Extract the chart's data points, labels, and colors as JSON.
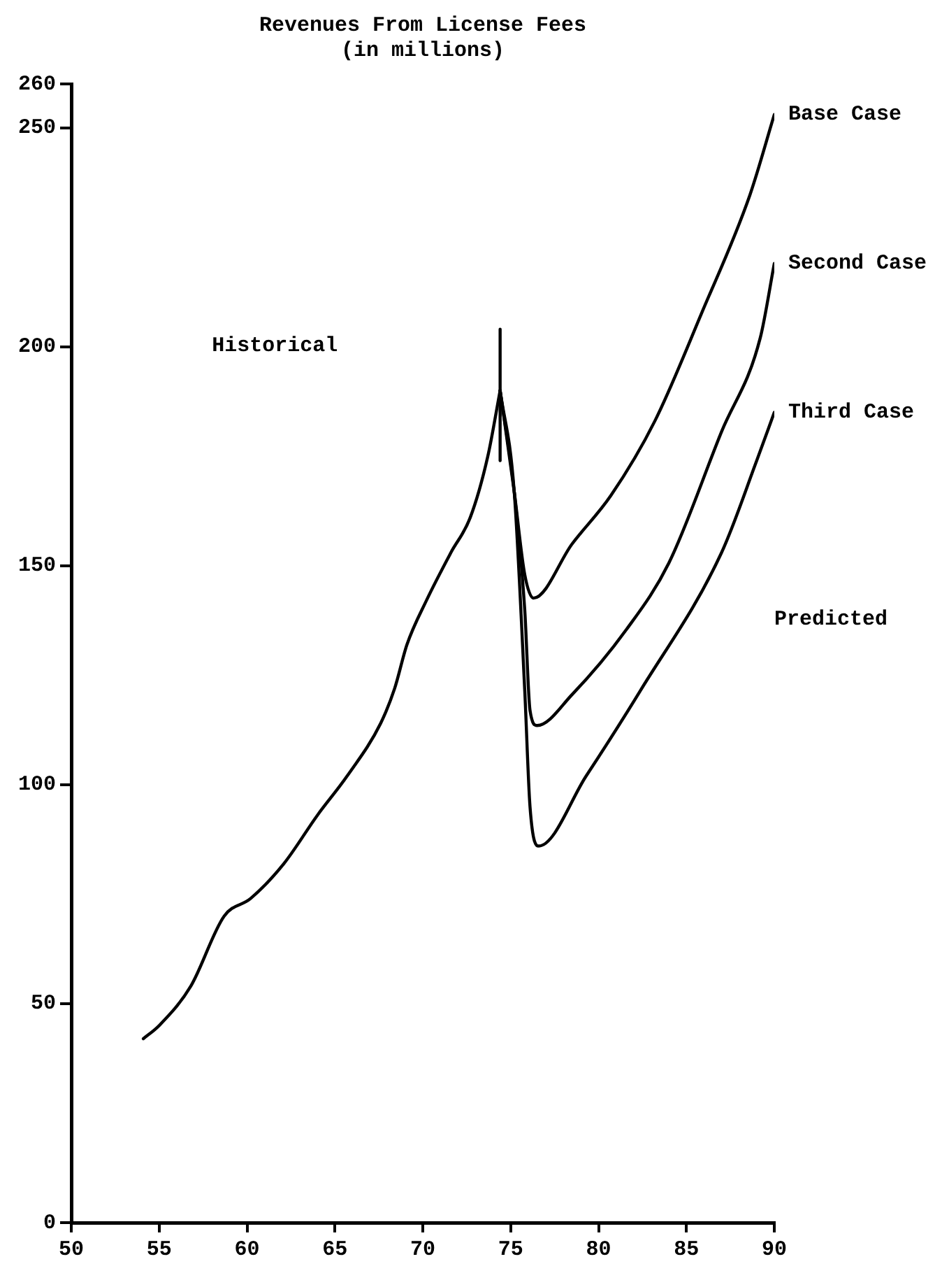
{
  "chart_data": {
    "type": "line",
    "title": "Revenues From License Fees",
    "subtitle": "(in millions)",
    "xlim": [
      50,
      90
    ],
    "xticks": [
      50,
      55,
      60,
      65,
      70,
      75,
      80,
      85,
      90
    ],
    "ylim": [
      0,
      260
    ],
    "yticks": [
      0,
      50,
      100,
      150,
      200,
      250,
      260
    ],
    "legend": false,
    "marker": "none",
    "line_style": "solid",
    "annotations": [
      "Historical",
      "Predicted"
    ],
    "series": [
      {
        "color": "#000000",
        "x": [
          54.1,
          55.0,
          56.8,
          58.7,
          60.2,
          62.1,
          64.0,
          65.7,
          67.6,
          68.4,
          69.1,
          70.2,
          71.6,
          72.7,
          73.7,
          74.4
        ],
        "values": [
          42,
          45,
          54,
          70,
          74,
          82,
          93,
          102,
          114,
          122,
          132,
          142,
          153,
          161,
          175,
          190
        ]
      },
      {
        "color": "#000000",
        "x": [
          74.4,
          74.4
        ],
        "values": [
          204,
          174
        ]
      },
      {
        "name": "Base Case",
        "color": "#000000",
        "x": [
          74.4,
          75.2,
          75.8,
          76.3,
          78.5,
          80.7,
          83.2,
          85.9,
          88.6,
          90
        ],
        "values": [
          190,
          167,
          148,
          142.6,
          155,
          166,
          183,
          208,
          234.5,
          253
        ]
      },
      {
        "name": "Second Case",
        "color": "#000000",
        "x": [
          74.4,
          75.2,
          75.8,
          76.1,
          76.5,
          78.5,
          81.6,
          84.0,
          87.0,
          89.2,
          90
        ],
        "values": [
          190,
          167,
          140,
          117,
          113.5,
          120.6,
          135.5,
          150.6,
          180.6,
          202,
          219
        ]
      },
      {
        "name": "Third Case",
        "color": "#000000",
        "x": [
          74.4,
          75.2,
          75.8,
          76.1,
          76.6,
          79.3,
          82.4,
          87.0,
          89.0,
          90
        ],
        "values": [
          190,
          167,
          121.6,
          95,
          86,
          102,
          121.6,
          153,
          174,
          185
        ]
      }
    ]
  }
}
